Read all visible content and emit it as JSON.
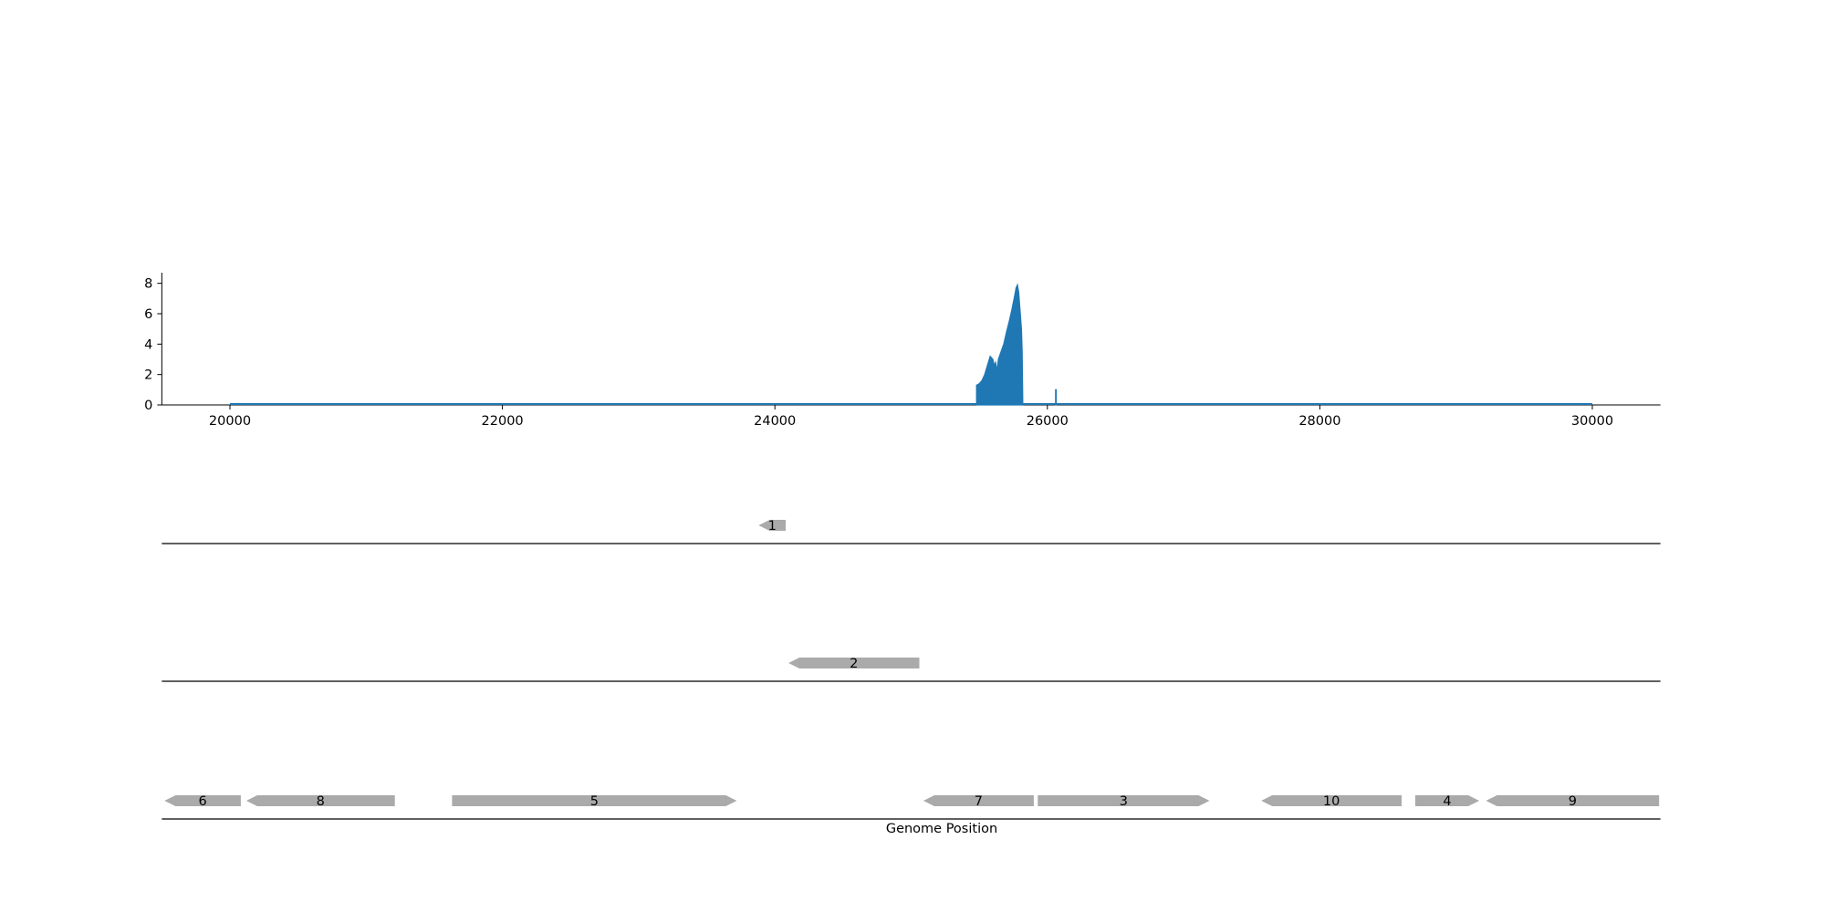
{
  "chart_data": [
    {
      "type": "area",
      "title": "",
      "xlabel": "",
      "ylabel": "",
      "xlim": [
        19500,
        30500
      ],
      "ylim": [
        0,
        8.7
      ],
      "xticks": [
        20000,
        22000,
        24000,
        26000,
        28000,
        30000
      ],
      "yticks": [
        0,
        2,
        4,
        6,
        8
      ],
      "color": "#1f77b4",
      "baseline": {
        "x_start": 20000,
        "x_end": 30000,
        "y": 0.0
      },
      "series": [
        {
          "points": [
            [
              25480,
              0
            ],
            [
              25480,
              1.3
            ],
            [
              25500,
              1.4
            ],
            [
              25520,
              1.6
            ],
            [
              25540,
              2.0
            ],
            [
              25560,
              2.6
            ],
            [
              25580,
              3.2
            ],
            [
              25600,
              3.0
            ],
            [
              25610,
              2.6
            ],
            [
              25620,
              2.8
            ],
            [
              25630,
              2.2
            ],
            [
              25640,
              3.0
            ],
            [
              25660,
              3.5
            ],
            [
              25680,
              4.0
            ],
            [
              25700,
              4.8
            ],
            [
              25720,
              5.5
            ],
            [
              25740,
              6.3
            ],
            [
              25760,
              7.2
            ],
            [
              25770,
              7.7
            ],
            [
              25780,
              7.9
            ],
            [
              25790,
              7.4
            ],
            [
              25800,
              6.2
            ],
            [
              25810,
              5.0
            ],
            [
              25815,
              3.5
            ],
            [
              25820,
              0
            ]
          ]
        },
        {
          "points": [
            [
              26060,
              0
            ],
            [
              26060,
              1.0
            ],
            [
              26065,
              1.0
            ],
            [
              26065,
              0
            ]
          ]
        }
      ]
    },
    {
      "type": "gene_track",
      "xlabel": "Genome Position",
      "xlim": [
        19500,
        30500
      ],
      "tracks": [
        {
          "genes": [
            {
              "label": "1",
              "start": 23880,
              "end": 24080,
              "strand": "-"
            }
          ]
        },
        {
          "genes": [
            {
              "label": "2",
              "start": 24100,
              "end": 25060,
              "strand": "-"
            }
          ]
        },
        {
          "genes": [
            {
              "label": "6",
              "start": 19520,
              "end": 20080,
              "strand": "-"
            },
            {
              "label": "8",
              "start": 20120,
              "end": 21210,
              "strand": "-"
            },
            {
              "label": "5",
              "start": 21630,
              "end": 23720,
              "strand": "+"
            },
            {
              "label": "7",
              "start": 25090,
              "end": 25900,
              "strand": "-"
            },
            {
              "label": "3",
              "start": 25930,
              "end": 27190,
              "strand": "+"
            },
            {
              "label": "10",
              "start": 27570,
              "end": 28600,
              "strand": "-"
            },
            {
              "label": "4",
              "start": 28700,
              "end": 29170,
              "strand": "+"
            },
            {
              "label": "9",
              "start": 29220,
              "end": 30490,
              "strand": "-"
            }
          ]
        }
      ]
    }
  ]
}
